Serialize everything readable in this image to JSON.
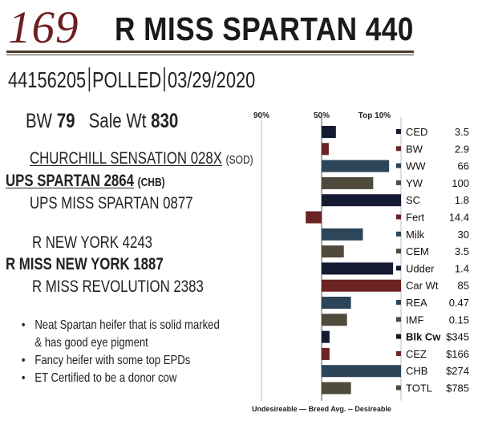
{
  "header": {
    "lot_number": "169",
    "animal_name": "R MISS SPARTAN 440",
    "registration": "44156205",
    "polled": "POLLED",
    "birth_date": "03/29/2020"
  },
  "weights": {
    "bw_label": "BW",
    "bw_value": "79",
    "sale_wt_label": "Sale Wt",
    "sale_wt_value": "830"
  },
  "pedigree": {
    "sire_sire": "CHURCHILL SENSATION 028X",
    "sire_sire_breed": "(SOD)",
    "sire": "UPS SPARTAN 2864",
    "sire_breed": "(CHB)",
    "sire_dam": "UPS MISS SPARTAN 0877",
    "dam_sire": "R NEW YORK 4243",
    "dam": "R MISS NEW YORK 1887",
    "dam_dam": "R MISS REVOLUTION 2383"
  },
  "notes": [
    "Neat Spartan heifer that is solid marked",
    "& has good eye pigment",
    "Fancy heifer with some top EPDs",
    "ET Certified to be a donor cow"
  ],
  "chart_data": {
    "type": "bar",
    "orientation": "horizontal",
    "top_labels": [
      "90%",
      "50%",
      "Top 10%"
    ],
    "bottom_labels": [
      "Undesireable",
      "Breed Avg.",
      "Desireable"
    ],
    "categories": [
      "CED",
      "BW",
      "WW",
      "YW",
      "SC",
      "Fert",
      "Milk",
      "CEM",
      "Udder",
      "Car Wt",
      "REA",
      "IMF",
      "Blk Cw",
      "CEZ",
      "CHB",
      "TOTL"
    ],
    "values_text": [
      "3.5",
      "2.9",
      "66",
      "100",
      "1.8",
      "14.4",
      "30",
      "3.5",
      "1.4",
      "85",
      "0.47",
      "0.15",
      "$345",
      "$166",
      "$274",
      "$785"
    ],
    "relative_strength": [
      0.18,
      0.09,
      0.85,
      0.65,
      1.0,
      -0.2,
      0.52,
      0.28,
      0.9,
      1.0,
      0.37,
      0.32,
      0.1,
      0.1,
      1.0,
      0.37
    ],
    "colors": [
      "#151a33",
      "#6b2323",
      "#2c4558",
      "#4f4a3c",
      "#151a33",
      "#6b2323",
      "#2c4558",
      "#4f4a3c",
      "#151a33",
      "#6b2323",
      "#2c4558",
      "#4f4a3c",
      "#151a33",
      "#6b2323",
      "#2c4558",
      "#4f4a3c"
    ],
    "bold_labels": [
      "Blk Cw"
    ]
  }
}
